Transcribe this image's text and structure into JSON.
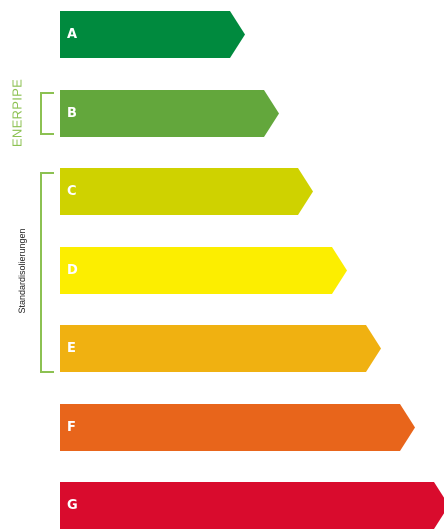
{
  "chart_data": {
    "type": "bar",
    "categories": [
      "A",
      "B",
      "C",
      "D",
      "E",
      "F",
      "G"
    ],
    "colors": [
      "#008a3e",
      "#63a73c",
      "#cfd200",
      "#fcee00",
      "#f0b111",
      "#e8651b",
      "#d90b2d"
    ],
    "annotations": [
      {
        "label": "ENERPIPE",
        "covers": [
          "B"
        ],
        "color": "#8cc152"
      },
      {
        "label": "Standardisolierungen",
        "covers": [
          "C",
          "D",
          "E"
        ],
        "color": "#8cc152"
      }
    ]
  }
}
